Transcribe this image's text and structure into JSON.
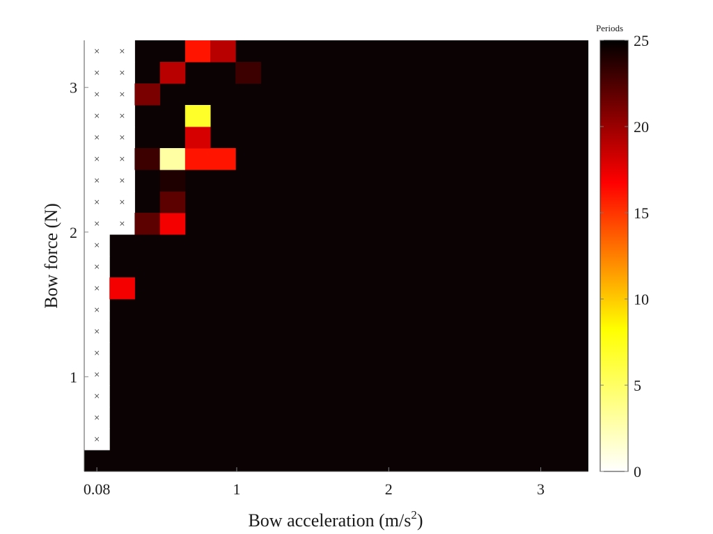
{
  "chart_data": {
    "type": "heatmap",
    "title": "",
    "xlabel_main": "Bow acceleration (m/s",
    "xlabel_sup": "2",
    "xlabel_close": ")",
    "ylabel": "Bow force (N)",
    "x_tick_labels": [
      "0.08",
      "1",
      "2",
      "3"
    ],
    "y_tick_labels": [
      "1",
      "2",
      "3"
    ],
    "colorbar": {
      "label": "Periods",
      "ticks": [
        "0",
        "5",
        "10",
        "15",
        "20",
        "25"
      ],
      "range": [
        0,
        25
      ],
      "colormap": [
        "#ffffff",
        "#ffff00",
        "#ff0000",
        "#000000"
      ],
      "base_color": "#0a0203"
    },
    "grid": {
      "cols": 20,
      "rows": 20,
      "col_centers": [
        0.08,
        0.2458,
        0.4116,
        0.5774,
        0.7432,
        0.909,
        1.0748,
        1.2406,
        1.4064,
        1.5722,
        1.738,
        1.9038,
        2.0696,
        2.2354,
        2.4012,
        2.567,
        2.7328,
        2.8986,
        3.0644,
        3.2302
      ],
      "row_centers": [
        0.42,
        0.569,
        0.718,
        0.867,
        1.016,
        1.165,
        1.314,
        1.463,
        1.612,
        1.761,
        1.91,
        2.059,
        2.208,
        2.357,
        2.506,
        2.655,
        2.804,
        2.953,
        3.102,
        3.251
      ],
      "col_centers_unit": "data",
      "row_centers_unit": "data"
    },
    "undefined_cells": {
      "marker": "×",
      "cells": [
        [
          0,
          1
        ],
        [
          0,
          2
        ],
        [
          0,
          3
        ],
        [
          0,
          4
        ],
        [
          0,
          5
        ],
        [
          0,
          6
        ],
        [
          0,
          7
        ],
        [
          0,
          8
        ],
        [
          0,
          9
        ],
        [
          0,
          10
        ],
        [
          0,
          11
        ],
        [
          0,
          12
        ],
        [
          0,
          13
        ],
        [
          0,
          14
        ],
        [
          0,
          15
        ],
        [
          0,
          16
        ],
        [
          0,
          17
        ],
        [
          0,
          18
        ],
        [
          0,
          19
        ],
        [
          1,
          11
        ],
        [
          1,
          12
        ],
        [
          1,
          13
        ],
        [
          1,
          14
        ],
        [
          1,
          15
        ],
        [
          1,
          16
        ],
        [
          1,
          17
        ],
        [
          1,
          18
        ],
        [
          1,
          19
        ]
      ]
    },
    "highlight_cells": [
      {
        "col": 1,
        "row": 8,
        "value": 17
      },
      {
        "col": 2,
        "row": 11,
        "value": 22
      },
      {
        "col": 3,
        "row": 11,
        "value": 17
      },
      {
        "col": 3,
        "row": 12,
        "value": 22
      },
      {
        "col": 3,
        "row": 13,
        "value": 24
      },
      {
        "col": 2,
        "row": 14,
        "value": 23
      },
      {
        "col": 3,
        "row": 14,
        "value": 3
      },
      {
        "col": 4,
        "row": 14,
        "value": 16
      },
      {
        "col": 5,
        "row": 14,
        "value": 16
      },
      {
        "col": 4,
        "row": 15,
        "value": 18
      },
      {
        "col": 4,
        "row": 16,
        "value": 7
      },
      {
        "col": 2,
        "row": 17,
        "value": 21
      },
      {
        "col": 3,
        "row": 18,
        "value": 19
      },
      {
        "col": 6,
        "row": 18,
        "value": 23
      },
      {
        "col": 4,
        "row": 19,
        "value": 16
      },
      {
        "col": 5,
        "row": 19,
        "value": 19
      }
    ]
  }
}
